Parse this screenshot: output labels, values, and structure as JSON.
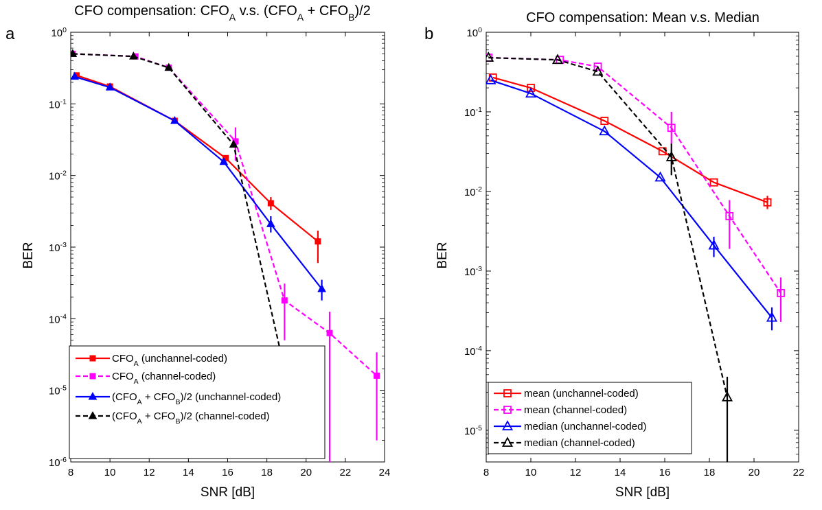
{
  "panels": [
    {
      "letter": "a",
      "title_parts": [
        [
          "CFO compensation: CFO",
          ""
        ],
        [
          "A",
          "sub"
        ],
        [
          " v.s. (CFO",
          ""
        ],
        [
          "A",
          "sub"
        ],
        [
          " + CFO",
          ""
        ],
        [
          "B",
          "sub"
        ],
        [
          ")/2",
          ""
        ]
      ]
    },
    {
      "letter": "b",
      "title_parts": [
        [
          "CFO compensation: Mean v.s. Median",
          ""
        ]
      ]
    }
  ],
  "chart_data": [
    {
      "type": "line",
      "title": "CFO compensation: CFOA v.s. (CFOA + CFOB)/2",
      "xlabel": "SNR [dB]",
      "ylabel": "BER",
      "xlim": [
        8,
        24
      ],
      "ylim": [
        1e-06,
        1
      ],
      "yscale": "log",
      "xticks": [
        "8",
        "10",
        "12",
        "14",
        "16",
        "18",
        "20",
        "22",
        "24"
      ],
      "yticks": [
        [
          "10",
          "0"
        ],
        [
          "10",
          "-1"
        ],
        [
          "10",
          "-2"
        ],
        [
          "10",
          "-3"
        ],
        [
          "10",
          "-4"
        ],
        [
          "10",
          "-5"
        ],
        [
          "10",
          "-6"
        ]
      ],
      "grid": false,
      "legend_position": "bottom-left",
      "series": [
        {
          "name": "CFOA (unchannel-coded)",
          "name_parts": [
            [
              "CFO",
              ""
            ],
            [
              "A",
              "sub"
            ],
            [
              " (unchannel-coded)",
              ""
            ]
          ],
          "color": "#ff0000",
          "dash": "solid",
          "marker": "filled-square",
          "x": [
            8.3,
            10.0,
            13.3,
            15.9,
            18.2,
            20.6
          ],
          "y": [
            0.25,
            0.175,
            0.058,
            0.0175,
            0.0041,
            0.0012
          ],
          "err_low": [
            null,
            null,
            null,
            null,
            0.0033,
            0.0006
          ],
          "err_high": [
            null,
            null,
            null,
            null,
            0.005,
            0.0017
          ]
        },
        {
          "name": "CFOA (channel-coded)",
          "name_parts": [
            [
              "CFO",
              ""
            ],
            [
              "A",
              "sub"
            ],
            [
              " (channel-coded)",
              ""
            ]
          ],
          "color": "#ff00ff",
          "dash": "dashed",
          "marker": "filled-square",
          "x": [
            8.1,
            11.3,
            13.0,
            16.4,
            18.9,
            21.2,
            23.6
          ],
          "y": [
            0.5,
            0.46,
            0.32,
            0.03,
            0.00018,
            6.3e-05,
            1.6e-05
          ],
          "err_low": [
            null,
            null,
            null,
            0.016,
            5e-05,
            8e-07,
            2e-06
          ],
          "err_high": [
            null,
            null,
            null,
            0.047,
            0.00031,
            0.000125,
            3.4e-05
          ]
        },
        {
          "name": "(CFOA + CFOB)/2 (unchannel-coded)",
          "name_parts": [
            [
              "(CFO",
              ""
            ],
            [
              "A",
              "sub"
            ],
            [
              " + CFO",
              ""
            ],
            [
              "B",
              "sub"
            ],
            [
              ")/2 (unchannel-coded)",
              ""
            ]
          ],
          "color": "#0000ff",
          "dash": "solid",
          "marker": "filled-triangle",
          "x": [
            8.2,
            10.0,
            13.3,
            15.8,
            18.2,
            20.8
          ],
          "y": [
            0.24,
            0.17,
            0.058,
            0.0155,
            0.0021,
            0.00026
          ],
          "err_low": [
            null,
            null,
            null,
            null,
            0.0016,
            0.00018
          ],
          "err_high": [
            null,
            null,
            null,
            null,
            0.0027,
            0.00035
          ]
        },
        {
          "name": "(CFOA + CFOB)/2 (channel-coded)",
          "name_parts": [
            [
              "(CFO",
              ""
            ],
            [
              "A",
              "sub"
            ],
            [
              " + CFO",
              ""
            ],
            [
              "B",
              "sub"
            ],
            [
              ")/2 (channel-coded)",
              ""
            ]
          ],
          "color": "#000000",
          "dash": "dashed",
          "marker": "filled-triangle",
          "x": [
            8.1,
            11.2,
            13.0,
            16.3,
            18.8
          ],
          "y": [
            0.5,
            0.46,
            0.32,
            0.027,
            2.6e-05
          ],
          "err_low": [
            null,
            null,
            null,
            null,
            1.8e-05
          ],
          "err_high": [
            null,
            null,
            null,
            null,
            4.2e-05
          ]
        }
      ]
    },
    {
      "type": "line",
      "title": "CFO compensation: Mean v.s. Median",
      "xlabel": "SNR [dB]",
      "ylabel": "BER",
      "xlim": [
        8,
        22
      ],
      "ylim": [
        4e-06,
        1
      ],
      "yscale": "log",
      "xticks": [
        "8",
        "10",
        "12",
        "14",
        "16",
        "18",
        "20",
        "22"
      ],
      "yticks": [
        [
          "10",
          "0"
        ],
        [
          "10",
          "-1"
        ],
        [
          "10",
          "-2"
        ],
        [
          "10",
          "-3"
        ],
        [
          "10",
          "-4"
        ],
        [
          "10",
          "-5"
        ]
      ],
      "grid": false,
      "legend_position": "bottom-left",
      "series": [
        {
          "name": "mean (unchannel-coded)",
          "name_parts": [
            [
              "mean (unchannel-coded)",
              ""
            ]
          ],
          "color": "#ff0000",
          "dash": "solid",
          "marker": "open-square",
          "x": [
            8.3,
            10.0,
            13.3,
            15.9,
            18.2,
            20.6
          ],
          "y": [
            0.27,
            0.2,
            0.077,
            0.032,
            0.013,
            0.0073
          ],
          "err_low": [
            null,
            null,
            null,
            null,
            null,
            0.006
          ],
          "err_high": [
            null,
            null,
            null,
            null,
            null,
            0.0088
          ]
        },
        {
          "name": "mean (channel-coded)",
          "name_parts": [
            [
              "mean (channel-coded)",
              ""
            ]
          ],
          "color": "#ff00ff",
          "dash": "dashed",
          "marker": "open-square",
          "x": [
            8.1,
            11.3,
            13.0,
            16.3,
            18.9,
            21.2
          ],
          "y": [
            0.48,
            0.45,
            0.37,
            0.063,
            0.0049,
            0.00053
          ],
          "err_low": [
            null,
            null,
            null,
            0.04,
            0.0019,
            0.00023
          ],
          "err_high": [
            null,
            null,
            null,
            0.1,
            0.0078,
            0.00083
          ]
        },
        {
          "name": "median (unchannel-coded)",
          "name_parts": [
            [
              "median (unchannel-coded)",
              ""
            ]
          ],
          "color": "#0000ff",
          "dash": "solid",
          "marker": "open-triangle",
          "x": [
            8.2,
            10.0,
            13.3,
            15.8,
            18.2,
            20.8
          ],
          "y": [
            0.25,
            0.17,
            0.057,
            0.015,
            0.0021,
            0.00026
          ],
          "err_low": [
            null,
            null,
            null,
            null,
            0.0015,
            0.00018
          ],
          "err_high": [
            null,
            null,
            null,
            null,
            0.0027,
            0.00035
          ]
        },
        {
          "name": "median (channel-coded)",
          "name_parts": [
            [
              "median (channel-coded)",
              ""
            ]
          ],
          "color": "#000000",
          "dash": "dashed",
          "marker": "open-triangle",
          "x": [
            8.1,
            11.2,
            13.0,
            16.3,
            18.8
          ],
          "y": [
            0.48,
            0.45,
            0.32,
            0.027,
            2.6e-05
          ],
          "err_low": [
            null,
            null,
            null,
            0.016,
            3e-06
          ],
          "err_high": [
            null,
            null,
            null,
            0.04,
            4.7e-05
          ]
        }
      ]
    }
  ]
}
